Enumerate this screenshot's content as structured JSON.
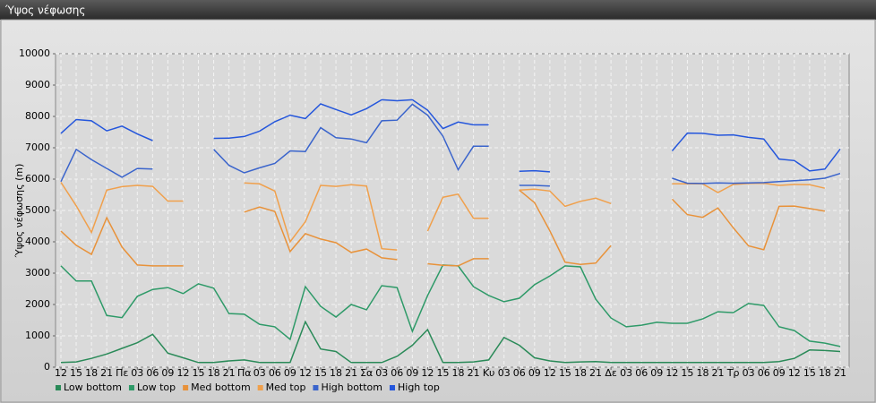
{
  "chart_data": {
    "type": "line",
    "title": "Ύψος νέφωσης",
    "y_label": "Ύψος νέφωσης (m)",
    "categories": [
      "12",
      "15",
      "18",
      "21",
      "Πε",
      "03",
      "06",
      "09",
      "12",
      "15",
      "18",
      "21",
      "Πα",
      "03",
      "06",
      "09",
      "12",
      "15",
      "18",
      "21",
      "Σα",
      "03",
      "06",
      "09",
      "12",
      "15",
      "18",
      "21",
      "Κυ",
      "03",
      "06",
      "09",
      "12",
      "15",
      "18",
      "21",
      "Δε",
      "03",
      "06",
      "09",
      "12",
      "15",
      "18",
      "21",
      "Τρ",
      "03",
      "06",
      "09",
      "12",
      "15",
      "18",
      "21"
    ],
    "ylim": [
      0,
      10000
    ],
    "yticks": [
      0,
      1000,
      2000,
      3000,
      4000,
      5000,
      6000,
      7000,
      8000,
      9000,
      10000
    ],
    "grid": true,
    "legend": "bottom",
    "series": [
      {
        "name": "Low bottom",
        "color": "#2a8a58",
        "values": [
          150,
          170,
          280,
          420,
          600,
          780,
          1050,
          450,
          300,
          150,
          150,
          200,
          230,
          150,
          150,
          150,
          1450,
          580,
          500,
          150,
          150,
          150,
          350,
          700,
          1200,
          150,
          150,
          170,
          230,
          950,
          700,
          300,
          200,
          150,
          170,
          180,
          150,
          150,
          150,
          150,
          150,
          150,
          150,
          150,
          150,
          150,
          150,
          180,
          280,
          550,
          530,
          500
        ]
      },
      {
        "name": "Low top",
        "color": "#2e9a68",
        "values": [
          3230,
          2750,
          2750,
          1650,
          1580,
          2260,
          2480,
          2540,
          2350,
          2660,
          2520,
          1710,
          1690,
          1370,
          1290,
          890,
          2570,
          1940,
          1600,
          2000,
          1830,
          2600,
          2540,
          1140,
          2290,
          3260,
          3230,
          2570,
          2290,
          2090,
          2200,
          2630,
          2910,
          3230,
          3200,
          2170,
          1570,
          1290,
          1340,
          1430,
          1400,
          1400,
          1540,
          1770,
          1740,
          2030,
          1970,
          1290,
          1170,
          830,
          770,
          660
        ]
      },
      {
        "name": "Med bottom",
        "color": "#e8923a",
        "values": [
          4340,
          3890,
          3600,
          4770,
          3830,
          3260,
          3230,
          3230,
          3230,
          null,
          null,
          null,
          4950,
          5110,
          4970,
          3690,
          4260,
          4090,
          3970,
          3660,
          3770,
          3490,
          3430,
          null,
          3300,
          3250,
          3230,
          3460,
          3460,
          null,
          5650,
          5250,
          4350,
          3350,
          3280,
          3320,
          3880,
          null,
          null,
          null,
          5360,
          4870,
          4780,
          5080,
          4450,
          3870,
          3750,
          5130,
          5140,
          5060,
          4980,
          null
        ]
      },
      {
        "name": "Med top",
        "color": "#f0a04c",
        "values": [
          5900,
          5150,
          4300,
          5650,
          5760,
          5800,
          5770,
          5300,
          5300,
          null,
          null,
          null,
          5880,
          5850,
          5620,
          4000,
          4640,
          5800,
          5770,
          5820,
          5780,
          3780,
          3740,
          null,
          4340,
          5420,
          5520,
          4750,
          4750,
          null,
          5650,
          5680,
          5620,
          5130,
          5290,
          5390,
          5220,
          null,
          null,
          null,
          5850,
          5850,
          5850,
          5570,
          5830,
          5860,
          5870,
          5800,
          5830,
          5820,
          5710,
          null
        ]
      },
      {
        "name": "High bottom",
        "color": "#3a64cc",
        "values": [
          5920,
          6950,
          6620,
          6340,
          6060,
          6340,
          6320,
          null,
          null,
          null,
          6950,
          6440,
          6200,
          6360,
          6500,
          6900,
          6880,
          7640,
          7320,
          7280,
          7160,
          7860,
          7880,
          8390,
          8040,
          7370,
          6300,
          7050,
          7050,
          null,
          5800,
          5800,
          5780,
          null,
          null,
          null,
          null,
          null,
          null,
          null,
          6030,
          5870,
          5860,
          5880,
          5870,
          5880,
          5890,
          5920,
          5950,
          5980,
          6030,
          6180
        ]
      },
      {
        "name": "High top",
        "color": "#2456dc",
        "values": [
          7460,
          7900,
          7860,
          7540,
          7690,
          7440,
          7230,
          null,
          null,
          null,
          7300,
          7310,
          7360,
          7530,
          7830,
          8040,
          7930,
          8400,
          8220,
          8050,
          8250,
          8530,
          8500,
          8530,
          8200,
          7610,
          7820,
          7730,
          7730,
          null,
          6250,
          6270,
          6230,
          null,
          null,
          null,
          null,
          null,
          null,
          null,
          6900,
          7470,
          7460,
          7400,
          7410,
          7330,
          7280,
          6640,
          6590,
          6260,
          6320,
          6960
        ]
      }
    ]
  }
}
